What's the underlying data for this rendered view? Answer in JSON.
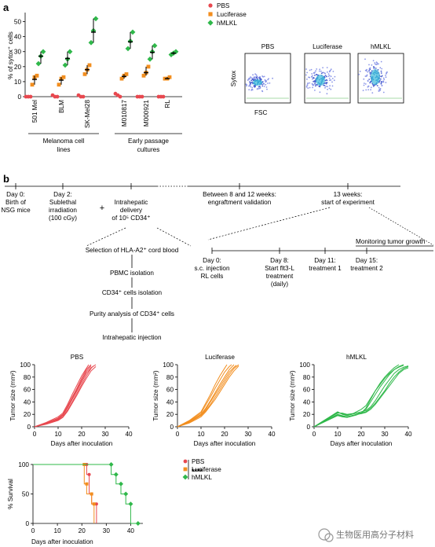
{
  "panel_a": {
    "letter": "a",
    "scatter": {
      "ylabel": "% of sytox⁺ cells",
      "yticks": [
        0,
        10,
        20,
        30,
        40,
        50
      ],
      "categories": [
        "501 Mel",
        "BLM",
        "SK-Mel28",
        "M010817",
        "M000921",
        "RL"
      ],
      "group_labels": [
        {
          "text_lines": [
            "Melanoma cell",
            "lines"
          ]
        },
        {
          "text_lines": [
            "Early passage",
            "cultures"
          ]
        }
      ],
      "legend": [
        {
          "name": "PBS",
          "color": "#e8484f",
          "marker": "circle"
        },
        {
          "name": "Luciferase",
          "color": "#f28e1f",
          "marker": "square"
        },
        {
          "name": "hMLKL",
          "color": "#2fb84a",
          "marker": "diamond"
        }
      ]
    },
    "flow": {
      "titles": [
        "PBS",
        "Luciferase",
        "hMLKL"
      ],
      "ylabel": "Sytox",
      "xlabel": "FSC"
    }
  },
  "panel_b": {
    "letter": "b",
    "timeline": {
      "events": [
        {
          "lines": [
            "Day 0:",
            "Birth of",
            "NSG mice"
          ]
        },
        {
          "lines": [
            "Day 2:",
            "Sublethal",
            "irradiation",
            "(100 cGy)"
          ]
        },
        {
          "lines": [
            "+"
          ]
        },
        {
          "lines": [
            "Intrahepatic",
            "delivery",
            "of 10⁵ CD34⁺"
          ]
        },
        {
          "lines": [
            "Between 8 and 12 weeks:",
            "engraftment validation"
          ]
        },
        {
          "lines": [
            "13 weeks:",
            "start of experiment"
          ]
        }
      ],
      "protocol_steps": [
        "Selection of HLA-A2⁺ cord blood",
        "PBMC isolation",
        "CD34⁺ cells isolation",
        "Purity analysis of CD34⁺ cells",
        "Intrahepatic injection"
      ],
      "experiment": {
        "monitoring": "Monitoring tumor growth",
        "events": [
          {
            "lines": [
              "Day 0:",
              "s.c. injection",
              "RL cells"
            ]
          },
          {
            "lines": [
              "Day 8:",
              "Start flt3-L",
              "treatment",
              "(daily)"
            ]
          },
          {
            "lines": [
              "Day 11:",
              "treatment 1"
            ]
          },
          {
            "lines": [
              "Day 15:",
              "treatment 2"
            ]
          }
        ]
      }
    },
    "growth": {
      "ylabel": "Tumor size (mm²)",
      "xlabel": "Days after inoculation",
      "yticks": [
        0,
        20,
        40,
        60,
        80,
        100
      ],
      "xticks": [
        0,
        10,
        20,
        30,
        40
      ],
      "panels": [
        {
          "title": "PBS",
          "color": "#e8484f"
        },
        {
          "title": "Luciferase",
          "color": "#f28e1f"
        },
        {
          "title": "hMLKL",
          "color": "#2fb84a"
        }
      ]
    },
    "survival": {
      "ylabel": "% Survival",
      "xlabel": "Days after inoculation",
      "yticks": [
        0,
        50,
        100
      ],
      "xticks": [
        0,
        10,
        20,
        30,
        40
      ],
      "significance": "****",
      "legend": [
        {
          "name": "PBS",
          "color": "#e8484f",
          "marker": "circle"
        },
        {
          "name": "Luciferase",
          "color": "#f28e1f",
          "marker": "square"
        },
        {
          "name": "hMLKL",
          "color": "#2fb84a",
          "marker": "diamond"
        }
      ]
    }
  },
  "watermark": {
    "text": "生物医用高分子材料"
  },
  "chart_data": [
    {
      "type": "scatter",
      "ylabel": "% of sytox⁺ cells",
      "ylim": [
        0,
        55
      ],
      "categories": [
        "501 Mel",
        "BLM",
        "SK-Mel28",
        "M010817",
        "M000921",
        "RL"
      ],
      "series": [
        {
          "name": "PBS",
          "color": "#e8484f",
          "values": [
            [
              0,
              0,
              0
            ],
            [
              1,
              0,
              0
            ],
            [
              1,
              0,
              0
            ],
            [
              2,
              1,
              0
            ],
            [
              0,
              0,
              0
            ],
            [
              0,
              0,
              0
            ]
          ],
          "means": [
            0,
            0.5,
            0.5,
            1,
            0,
            0
          ]
        },
        {
          "name": "Luciferase",
          "color": "#f28e1f",
          "values": [
            [
              8,
              13,
              14
            ],
            [
              8,
              12,
              13
            ],
            [
              15,
              18,
              21
            ],
            [
              12,
              14,
              15
            ],
            [
              14,
              16,
              20
            ],
            [
              12,
              12,
              13
            ]
          ],
          "means": [
            11.5,
            11,
            18,
            13.5,
            16,
            12
          ]
        },
        {
          "name": "hMLKL",
          "color": "#2fb84a",
          "values": [
            [
              22,
              27,
              30
            ],
            [
              21,
              25,
              30
            ],
            [
              36,
              44,
              52
            ],
            [
              32,
              37,
              43
            ],
            [
              25,
              30,
              34
            ],
            [
              28,
              29,
              30
            ]
          ],
          "means": [
            27,
            25.5,
            43,
            36.5,
            29.5,
            29
          ]
        }
      ]
    },
    {
      "type": "line",
      "title": "PBS",
      "xlabel": "Days after inoculation",
      "ylabel": "Tumor size (mm²)",
      "xlim": [
        0,
        40
      ],
      "ylim": [
        0,
        100
      ],
      "series": [
        {
          "x": [
            0,
            5,
            10,
            12,
            14,
            16,
            18,
            20,
            22,
            24,
            26
          ],
          "y": [
            0,
            5,
            12,
            18,
            30,
            44,
            58,
            72,
            86,
            95,
            100
          ]
        },
        {
          "x": [
            0,
            5,
            10,
            12,
            14,
            16,
            18,
            20,
            22,
            24
          ],
          "y": [
            0,
            6,
            14,
            20,
            33,
            48,
            62,
            78,
            92,
            100
          ]
        },
        {
          "x": [
            0,
            5,
            10,
            12,
            14,
            16,
            18,
            20,
            22,
            24,
            25
          ],
          "y": [
            0,
            5,
            11,
            16,
            27,
            40,
            54,
            68,
            82,
            94,
            98
          ]
        },
        {
          "x": [
            0,
            5,
            10,
            12,
            14,
            16,
            18,
            20,
            22,
            23
          ],
          "y": [
            0,
            7,
            16,
            22,
            36,
            52,
            67,
            82,
            94,
            100
          ]
        },
        {
          "x": [
            0,
            5,
            10,
            12,
            14,
            16,
            18,
            20,
            22,
            24,
            26
          ],
          "y": [
            0,
            4,
            10,
            15,
            25,
            38,
            51,
            65,
            78,
            90,
            97
          ]
        },
        {
          "x": [
            0,
            5,
            10,
            12,
            14,
            16,
            18,
            20,
            22,
            24
          ],
          "y": [
            0,
            6,
            13,
            19,
            31,
            45,
            60,
            75,
            89,
            98
          ]
        }
      ]
    },
    {
      "type": "line",
      "title": "Luciferase",
      "xlabel": "Days after inoculation",
      "ylabel": "Tumor size (mm²)",
      "xlim": [
        0,
        40
      ],
      "ylim": [
        0,
        100
      ],
      "series": [
        {
          "x": [
            0,
            5,
            10,
            12,
            14,
            16,
            18,
            20,
            22,
            24
          ],
          "y": [
            0,
            8,
            20,
            30,
            42,
            55,
            68,
            80,
            92,
            100
          ]
        },
        {
          "x": [
            0,
            5,
            10,
            12,
            14,
            16,
            18,
            20,
            22,
            23
          ],
          "y": [
            0,
            9,
            22,
            35,
            48,
            62,
            75,
            88,
            97,
            100
          ]
        },
        {
          "x": [
            0,
            5,
            10,
            12,
            14,
            16,
            18,
            20,
            22,
            24,
            26
          ],
          "y": [
            0,
            7,
            18,
            26,
            36,
            48,
            60,
            72,
            84,
            94,
            100
          ]
        },
        {
          "x": [
            0,
            5,
            10,
            12,
            14,
            16,
            18,
            20,
            22,
            24,
            25
          ],
          "y": [
            0,
            8,
            19,
            28,
            40,
            52,
            64,
            76,
            88,
            96,
            99
          ]
        },
        {
          "x": [
            0,
            5,
            10,
            12,
            14,
            16,
            18,
            20,
            21
          ],
          "y": [
            0,
            10,
            24,
            38,
            52,
            68,
            82,
            94,
            100
          ]
        },
        {
          "x": [
            0,
            5,
            10,
            12,
            14,
            16,
            18,
            20,
            22,
            24,
            26
          ],
          "y": [
            0,
            6,
            16,
            24,
            34,
            44,
            56,
            68,
            80,
            90,
            98
          ]
        }
      ]
    },
    {
      "type": "line",
      "title": "hMLKL",
      "xlabel": "Days after inoculation",
      "ylabel": "Tumor size (mm²)",
      "xlim": [
        0,
        40
      ],
      "ylim": [
        0,
        100
      ],
      "series": [
        {
          "x": [
            0,
            5,
            10,
            12,
            14,
            16,
            18,
            20,
            22,
            24,
            26,
            28,
            30,
            32,
            34,
            36,
            38
          ],
          "y": [
            0,
            10,
            20,
            18,
            16,
            18,
            20,
            22,
            28,
            40,
            52,
            64,
            74,
            84,
            92,
            97,
            100
          ]
        },
        {
          "x": [
            0,
            5,
            10,
            12,
            14,
            16,
            18,
            20,
            22,
            24,
            26,
            28,
            30,
            32,
            34,
            36,
            38,
            40
          ],
          "y": [
            0,
            12,
            24,
            20,
            18,
            20,
            22,
            24,
            26,
            32,
            42,
            54,
            66,
            76,
            86,
            92,
            96,
            98
          ]
        },
        {
          "x": [
            0,
            5,
            10,
            12,
            14,
            16,
            18,
            20,
            22,
            24,
            26,
            28,
            30,
            32,
            34,
            36
          ],
          "y": [
            0,
            9,
            18,
            16,
            15,
            17,
            19,
            22,
            30,
            44,
            58,
            70,
            80,
            88,
            95,
            100
          ]
        },
        {
          "x": [
            0,
            5,
            10,
            12,
            14,
            16,
            18,
            20,
            22,
            24,
            26,
            28,
            30,
            32,
            34,
            36,
            38,
            40
          ],
          "y": [
            0,
            11,
            22,
            22,
            20,
            21,
            22,
            22,
            24,
            30,
            38,
            48,
            58,
            70,
            80,
            88,
            94,
            97
          ]
        },
        {
          "x": [
            0,
            5,
            10,
            12,
            14,
            16,
            18,
            20,
            22,
            24,
            26,
            28,
            30,
            32,
            34,
            36,
            38,
            40
          ],
          "y": [
            0,
            10,
            19,
            17,
            16,
            18,
            20,
            21,
            23,
            28,
            36,
            46,
            56,
            66,
            76,
            86,
            92,
            95
          ]
        },
        {
          "x": [
            0,
            5,
            10,
            12,
            14,
            16,
            18,
            20,
            22,
            24,
            26,
            28,
            30,
            32,
            34,
            36,
            38
          ],
          "y": [
            0,
            12,
            23,
            21,
            19,
            20,
            24,
            28,
            34,
            46,
            58,
            68,
            78,
            86,
            92,
            96,
            99
          ]
        }
      ]
    },
    {
      "type": "line",
      "ylabel": "% Survival",
      "xlabel": "Days after inoculation",
      "xlim": [
        0,
        45
      ],
      "ylim": [
        0,
        100
      ],
      "series": [
        {
          "name": "PBS",
          "color": "#e8484f",
          "x": [
            0,
            22,
            22,
            23,
            23,
            24,
            24,
            26,
            26
          ],
          "y": [
            100,
            100,
            83,
            83,
            50,
            50,
            33,
            33,
            0
          ]
        },
        {
          "name": "Luciferase",
          "color": "#f28e1f",
          "x": [
            0,
            21,
            21,
            22,
            22,
            24,
            24,
            25,
            25
          ],
          "y": [
            100,
            100,
            67,
            67,
            50,
            50,
            33,
            33,
            0
          ]
        },
        {
          "name": "hMLKL",
          "color": "#2fb84a",
          "x": [
            0,
            32,
            32,
            34,
            34,
            36,
            36,
            38,
            38,
            40,
            40,
            43
          ],
          "y": [
            100,
            100,
            83,
            83,
            67,
            67,
            50,
            50,
            33,
            33,
            0,
            0
          ]
        }
      ]
    }
  ]
}
